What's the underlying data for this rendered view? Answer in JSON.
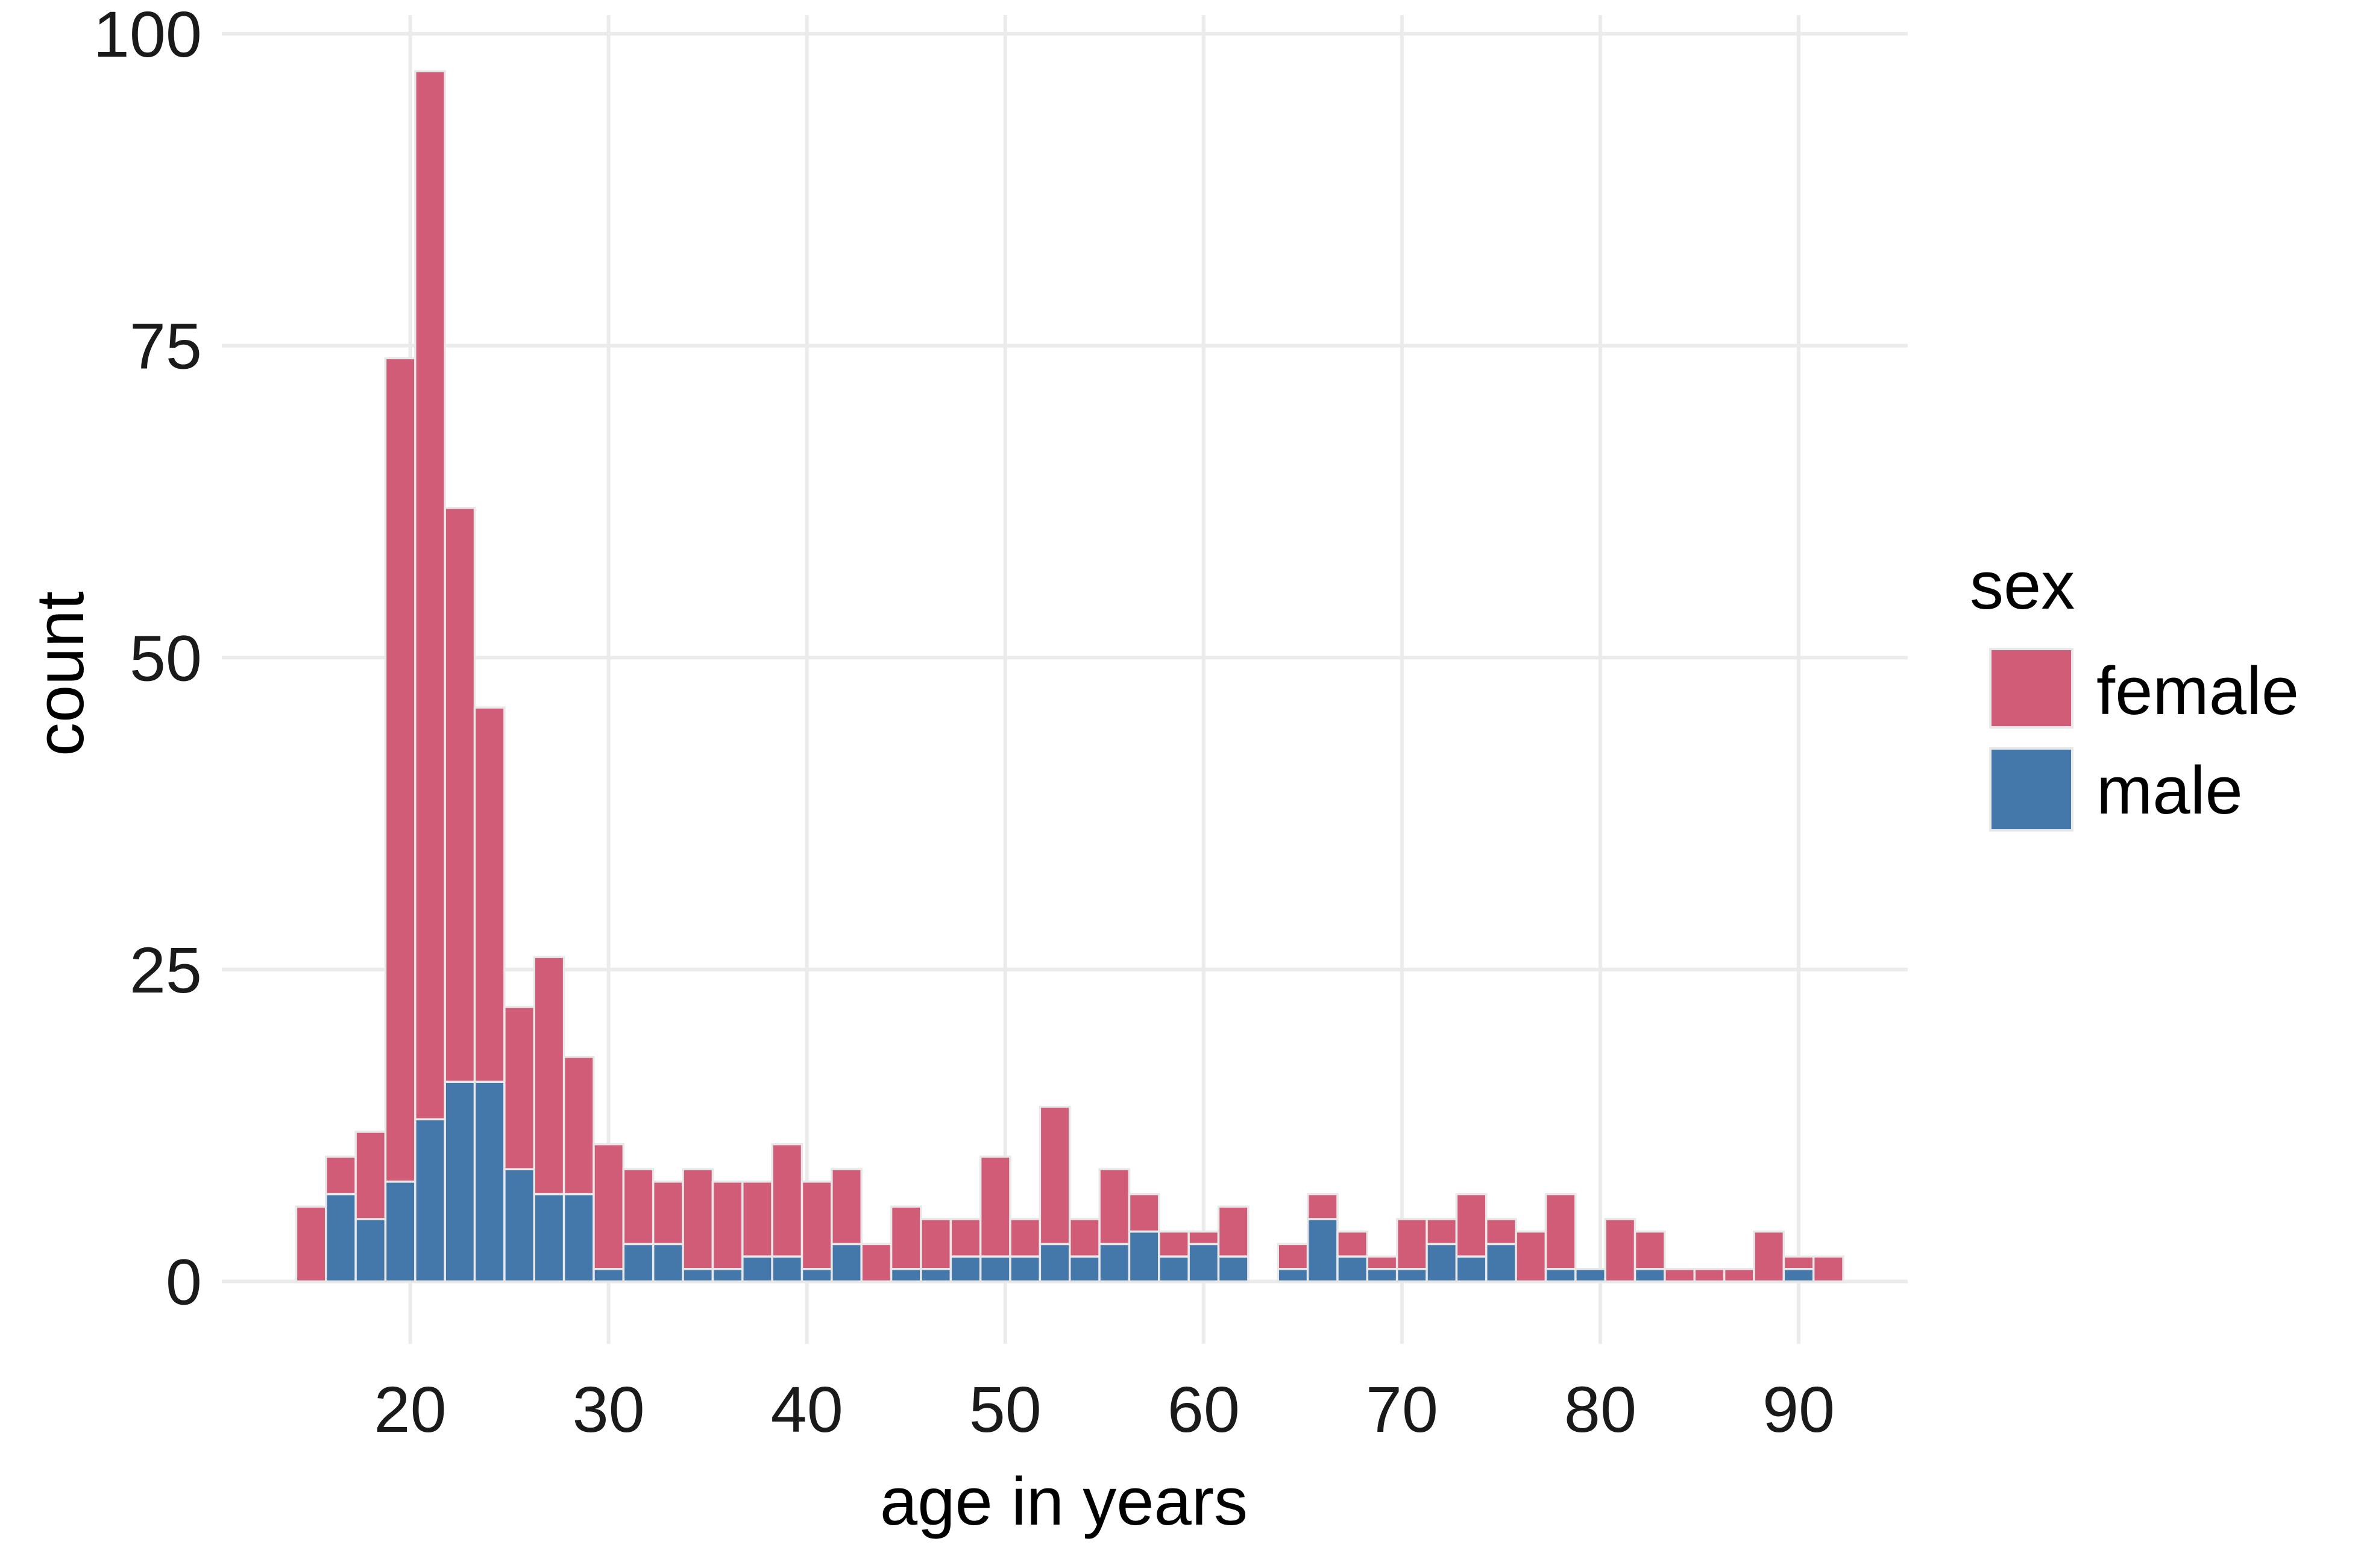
{
  "chart_data": {
    "type": "bar",
    "subtype": "stacked-histogram",
    "title": "",
    "xlabel": "age in years",
    "ylabel": "count",
    "xlim": [
      10.5,
      95.5
    ],
    "ylim": [
      -5,
      101.5
    ],
    "xticks": [
      20,
      30,
      40,
      50,
      60,
      70,
      80,
      90
    ],
    "yticks": [
      0,
      25,
      50,
      75,
      100
    ],
    "grid": true,
    "bin_width": 1.5,
    "legend": {
      "title": "sex",
      "position": "right"
    },
    "colors": {
      "female": "#d15c78",
      "male": "#4477aa"
    },
    "x": [
      15,
      16.5,
      18,
      19.5,
      21,
      22.5,
      24,
      25.5,
      27,
      28.5,
      30,
      31.5,
      33,
      34.5,
      36,
      37.5,
      39,
      40.5,
      42,
      43.5,
      45,
      46.5,
      48,
      49.5,
      51,
      52.5,
      54,
      55.5,
      57,
      58.5,
      60,
      61.5,
      63,
      64.5,
      66,
      67.5,
      69,
      70.5,
      72,
      73.5,
      75,
      76.5,
      78,
      79.5,
      81,
      82.5,
      84,
      85.5,
      87,
      88.5,
      90,
      91.5
    ],
    "series": [
      {
        "name": "female",
        "values": [
          6,
          3,
          7,
          66,
          84,
          46,
          30,
          13,
          19,
          11,
          10,
          6,
          5,
          8,
          7,
          6,
          9,
          7,
          6,
          3,
          5,
          4,
          3,
          8,
          3,
          11,
          3,
          6,
          3,
          2,
          1,
          4,
          0,
          2,
          2,
          2,
          1,
          4,
          2,
          5,
          2,
          4,
          6,
          0,
          5,
          3,
          1,
          1,
          1,
          4,
          1,
          2
        ]
      },
      {
        "name": "male",
        "values": [
          0,
          7,
          5,
          8,
          13,
          16,
          16,
          9,
          7,
          7,
          1,
          3,
          3,
          1,
          1,
          2,
          2,
          1,
          3,
          0,
          1,
          1,
          2,
          2,
          2,
          3,
          2,
          3,
          4,
          2,
          3,
          2,
          0,
          1,
          5,
          2,
          1,
          1,
          3,
          2,
          3,
          0,
          1,
          1,
          0,
          1,
          0,
          0,
          0,
          0,
          1,
          0
        ]
      }
    ]
  }
}
